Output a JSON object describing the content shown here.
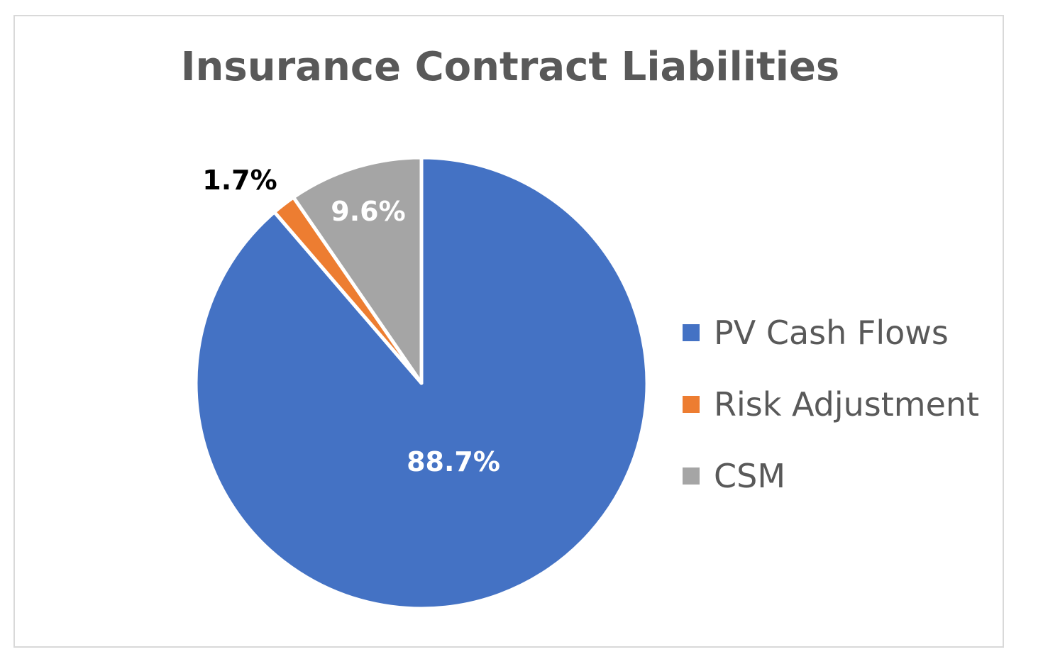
{
  "chart_data": {
    "type": "pie",
    "title": "Insurance Contract Liabilities",
    "slices": [
      {
        "name": "PV Cash Flows",
        "value": 88.7,
        "label": "88.7%",
        "color": "#4472C4",
        "label_color": "#ffffff"
      },
      {
        "name": "Risk Adjustment",
        "value": 1.7,
        "label": "1.7%",
        "color": "#ED7D31",
        "label_color": "#000000"
      },
      {
        "name": "CSM",
        "value": 9.6,
        "label": "9.6%",
        "color": "#A5A5A5",
        "label_color": "#ffffff"
      }
    ],
    "start_angle": "12 o'clock",
    "direction": "clockwise",
    "legend": {
      "position": "right"
    }
  }
}
